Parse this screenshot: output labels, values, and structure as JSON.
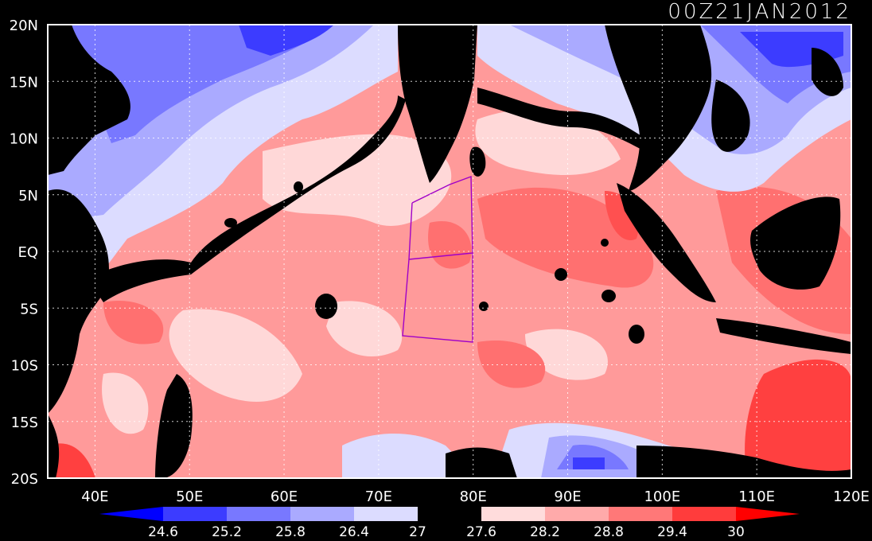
{
  "title": "00Z21JAN2012",
  "map": {
    "lon_range": [
      35,
      120
    ],
    "lat_range": [
      -20,
      20
    ],
    "x_ticks": [
      "40E",
      "50E",
      "60E",
      "70E",
      "80E",
      "90E",
      "100E",
      "110E",
      "120E"
    ],
    "x_tick_values": [
      40,
      50,
      60,
      70,
      80,
      90,
      100,
      110,
      120
    ],
    "y_ticks": [
      "20N",
      "15N",
      "10N",
      "5N",
      "EQ",
      "5S",
      "10S",
      "15S",
      "20S"
    ],
    "y_tick_values": [
      20,
      15,
      10,
      5,
      0,
      -5,
      -10,
      -15,
      -20
    ],
    "grid": "dotted",
    "land_color": "#000000",
    "overlay_polygon_color": "#a000c8"
  },
  "colorbar": {
    "labels": [
      "24.6",
      "25.2",
      "25.8",
      "26.4",
      "27",
      "27.6",
      "28.2",
      "28.8",
      "29.4",
      "30"
    ],
    "colors": [
      "#0000ff",
      "#3c3cff",
      "#7878ff",
      "#aaaaff",
      "#dcdcff",
      "#000000",
      "#ffdcdc",
      "#ffaaaa",
      "#ff7878",
      "#ff3c3c",
      "#ff0000"
    ]
  }
}
